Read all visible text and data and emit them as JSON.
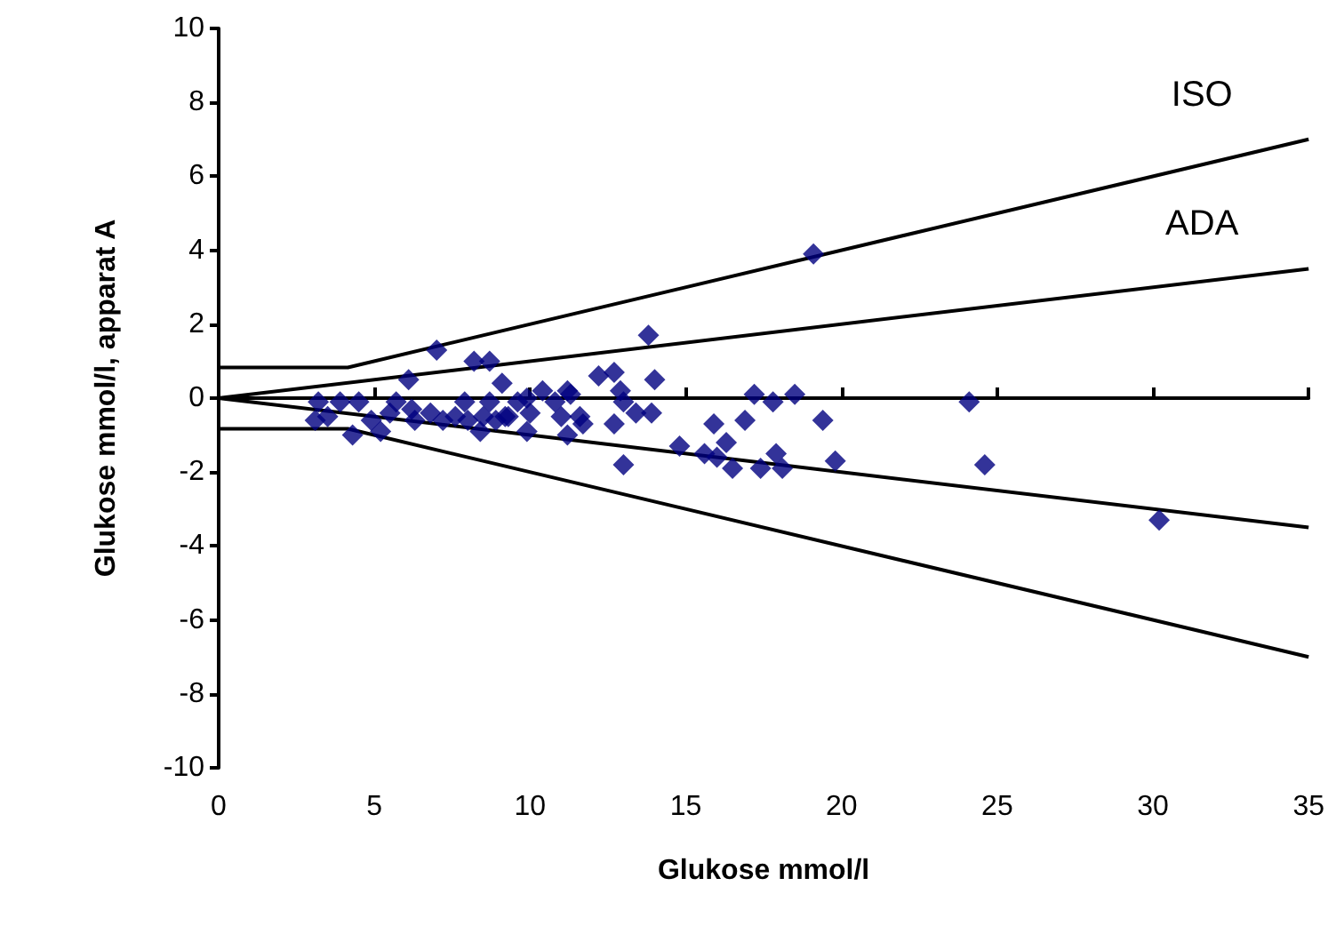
{
  "chart_data": {
    "type": "scatter",
    "xlabel": "Glukose mmol/l",
    "ylabel": "Glukose mmol/l, apparat A",
    "xlim": [
      0,
      35
    ],
    "xticks": [
      0,
      5,
      10,
      15,
      20,
      25,
      30,
      35
    ],
    "ylim": [
      -10,
      10
    ],
    "yticks": [
      -10,
      -8,
      -6,
      -4,
      -2,
      0,
      2,
      4,
      6,
      8,
      10
    ],
    "marker": "diamond",
    "series": [
      {
        "color": "#000080",
        "x": [
          19.1,
          13.8,
          14.0,
          12.2,
          12.7,
          12.9,
          13.0,
          13.4,
          13.9,
          12.7,
          17.2,
          17.8,
          18.5,
          19.4,
          16.9,
          15.9,
          16.3,
          14.8,
          15.6,
          16.0,
          13.0,
          16.5,
          17.4,
          17.9,
          18.1,
          19.8,
          24.1,
          24.6,
          30.2,
          7.0,
          8.2,
          8.7,
          9.1,
          6.1,
          3.2,
          3.1,
          3.5,
          3.9,
          4.3,
          4.5,
          4.9,
          5.2,
          5.7,
          5.5,
          6.2,
          6.3,
          6.8,
          7.2,
          7.6,
          7.9,
          8.0,
          8.4,
          8.7,
          8.9,
          9.2,
          8.5,
          9.9,
          10.0,
          9.9,
          10.8,
          11.2,
          11.0,
          11.6,
          11.2,
          11.7,
          9.3,
          9.6,
          10.4,
          11.3
        ],
        "values": [
          3.9,
          1.7,
          0.5,
          0.6,
          0.7,
          0.2,
          -0.1,
          -0.4,
          -0.4,
          -0.7,
          0.1,
          -0.1,
          0.1,
          -0.6,
          -0.6,
          -0.7,
          -1.2,
          -1.3,
          -1.5,
          -1.6,
          -1.8,
          -1.9,
          -1.9,
          -1.5,
          -1.9,
          -1.7,
          -0.1,
          -1.8,
          -3.3,
          1.3,
          1.0,
          1.0,
          0.4,
          0.5,
          -0.1,
          -0.6,
          -0.5,
          -0.1,
          -1.0,
          -0.1,
          -0.6,
          -0.9,
          -0.1,
          -0.4,
          -0.3,
          -0.6,
          -0.4,
          -0.6,
          -0.5,
          -0.1,
          -0.6,
          -0.9,
          -0.1,
          -0.6,
          -0.5,
          -0.5,
          0.0,
          -0.4,
          -0.9,
          -0.1,
          0.2,
          -0.5,
          -0.5,
          -1.0,
          -0.7,
          -0.5,
          -0.1,
          0.2,
          0.1
        ]
      },
      {
        "type": "line",
        "name": "ISO",
        "color": "#000000",
        "marker": "none",
        "x": [
          0,
          4.15,
          35
        ],
        "values": [
          0.83,
          0.83,
          7
        ]
      },
      {
        "type": "line",
        "color": "#000000",
        "marker": "none",
        "x": [
          0,
          4.15,
          35
        ],
        "values": [
          -0.83,
          -0.83,
          -7
        ]
      },
      {
        "type": "line",
        "name": "ADA",
        "color": "#000000",
        "marker": "none",
        "x": [
          0,
          35
        ],
        "values": [
          0,
          3.5
        ]
      },
      {
        "type": "line",
        "color": "#000000",
        "marker": "none",
        "x": [
          0,
          35
        ],
        "values": [
          0,
          -3.5
        ]
      }
    ]
  }
}
